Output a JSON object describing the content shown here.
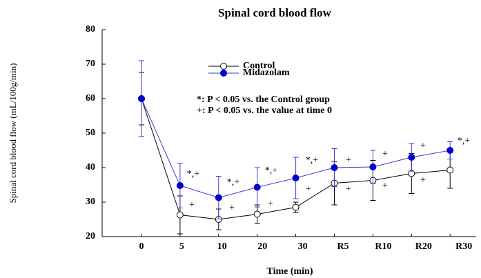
{
  "chart_data": {
    "type": "line",
    "title": "Spinal cord blood flow",
    "xlabel": "Time (min)",
    "ylabel": "Spinal cord blood flow (mL/100g/min)",
    "categories": [
      "0",
      "5",
      "10",
      "20",
      "30",
      "R5",
      "R10",
      "R20",
      "R30"
    ],
    "series": [
      {
        "name": "Control",
        "color": "#000000",
        "marker": "open",
        "values": [
          60,
          26.3,
          25,
          26.5,
          28.5,
          35.5,
          36.3,
          38.3,
          39.3
        ],
        "errors": [
          7.6,
          5.5,
          3,
          2.7,
          1.5,
          6.3,
          5.8,
          5.8,
          5.3
        ]
      },
      {
        "name": "Midazolam",
        "color": "#3a3ad6",
        "marker": "filled",
        "values": [
          60,
          34.8,
          31.3,
          34.3,
          37,
          40,
          40.2,
          43,
          45
        ],
        "errors": [
          11,
          6.5,
          6.2,
          5.7,
          6,
          5.5,
          4.8,
          4,
          2.5
        ]
      }
    ],
    "ylim": [
      20,
      80
    ],
    "yticks": [
      20,
      30,
      40,
      50,
      60,
      70,
      80
    ],
    "notes": [
      "*: P < 0.05 vs. the Control group",
      "+: P < 0.05 vs. the value at time 0"
    ],
    "annotations": [
      "*,+",
      "*,+",
      "*,+",
      "*,+",
      "*,+",
      "+",
      "+",
      "+",
      "+",
      "+",
      "+",
      "+",
      "+",
      "+",
      "+"
    ]
  }
}
